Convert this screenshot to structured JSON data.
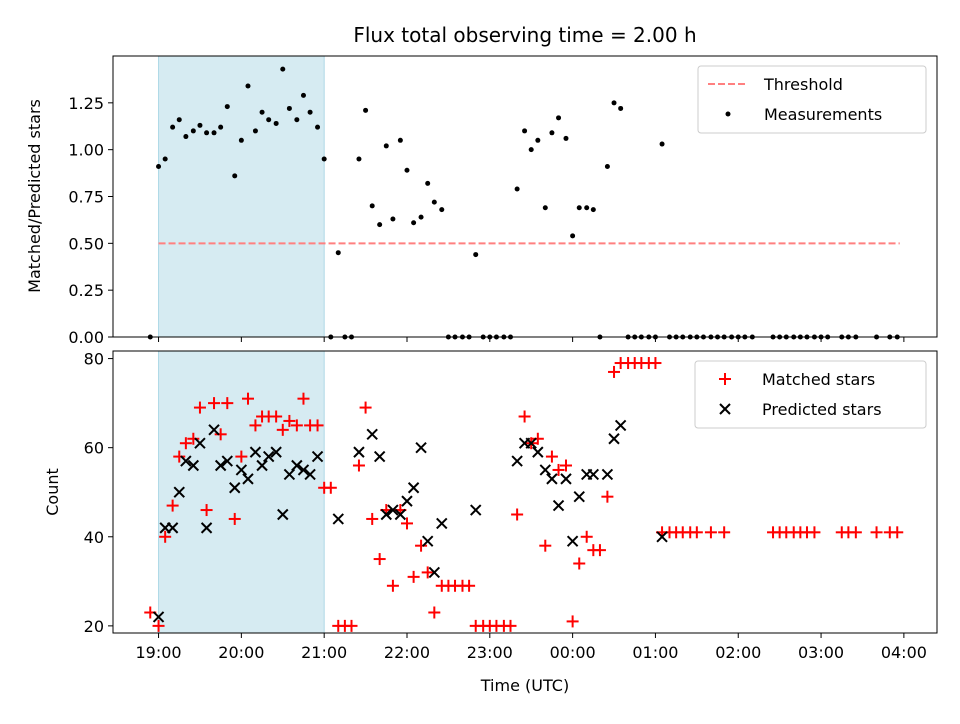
{
  "chart_data": [
    {
      "type": "scatter",
      "title": "Flux total observing time = 2.00 h",
      "xlabel": "",
      "ylabel": "Matched/Predicted stars",
      "x_units": "hours since 19:00 UTC",
      "xlim": [
        -0.55,
        9.4
      ],
      "ylim": [
        0,
        1.5
      ],
      "yticks": [
        0.0,
        0.25,
        0.5,
        0.75,
        1.0,
        1.25
      ],
      "ytick_labels": [
        "0.00",
        "0.25",
        "0.50",
        "0.75",
        "1.00",
        "1.25"
      ],
      "highlight_span": [
        0.0,
        2.0
      ],
      "highlight_color": "#add8e6",
      "threshold": {
        "label": "Threshold",
        "value": 0.5,
        "x_range": [
          0.0,
          8.95
        ],
        "color": "#ff8080"
      },
      "legend": [
        "Threshold",
        "Measurements"
      ],
      "series": [
        {
          "name": "Measurements",
          "color": "#000000",
          "x": [
            -0.1,
            0.0,
            0.08,
            0.17,
            0.25,
            0.33,
            0.42,
            0.5,
            0.58,
            0.67,
            0.75,
            0.83,
            0.92,
            1.0,
            1.08,
            1.17,
            1.25,
            1.33,
            1.42,
            1.5,
            1.58,
            1.67,
            1.75,
            1.83,
            1.92,
            2.0,
            2.08,
            2.17,
            2.25,
            2.33,
            2.42,
            2.5,
            2.58,
            2.67,
            2.75,
            2.83,
            2.92,
            3.0,
            3.08,
            3.17,
            3.25,
            3.33,
            3.42,
            3.5,
            3.58,
            3.67,
            3.75,
            3.83,
            3.92,
            4.0,
            4.08,
            4.17,
            4.25,
            4.33,
            4.42,
            4.5,
            4.58,
            4.67,
            4.75,
            4.83,
            4.92,
            5.0,
            5.08,
            5.17,
            5.25,
            5.33,
            5.42,
            5.5,
            5.58,
            5.67,
            5.75,
            5.83,
            5.92,
            6.0,
            6.08,
            6.17,
            6.25,
            6.33,
            6.42,
            6.5,
            6.58,
            6.67,
            6.75,
            6.83,
            6.92,
            7.0,
            7.08,
            7.17,
            7.42,
            7.5,
            7.58,
            7.67,
            7.75,
            7.83,
            7.92,
            8.0,
            8.08,
            8.25,
            8.33,
            8.42,
            8.67,
            8.83,
            8.92
          ],
          "y": [
            0.0,
            0.91,
            0.95,
            1.12,
            1.16,
            1.07,
            1.1,
            1.13,
            1.09,
            1.09,
            1.12,
            1.23,
            0.86,
            1.05,
            1.34,
            1.1,
            1.2,
            1.16,
            1.14,
            1.43,
            1.22,
            1.16,
            1.29,
            1.2,
            1.12,
            0.95,
            0.0,
            0.45,
            0.0,
            0.0,
            0.95,
            1.21,
            0.7,
            0.6,
            1.02,
            0.63,
            1.05,
            0.89,
            0.61,
            0.64,
            0.82,
            0.72,
            0.68,
            0.0,
            0.0,
            0.0,
            0.0,
            0.44,
            0.0,
            0.0,
            0.0,
            0.0,
            0.0,
            0.79,
            1.1,
            1.0,
            1.05,
            0.69,
            1.09,
            1.17,
            1.06,
            0.54,
            0.69,
            0.69,
            0.68,
            0.0,
            0.91,
            1.25,
            1.22,
            0.0,
            0.0,
            0.0,
            0.0,
            0.0,
            1.03,
            0.0,
            0.0,
            0.0,
            0.0,
            0.0,
            0.0,
            0.0,
            0.0,
            0.0,
            0.0,
            0.0,
            0.0,
            0.0,
            0.0,
            0.0,
            0.0,
            0.0,
            0.0,
            0.0,
            0.0,
            0.0,
            0.0,
            0.0,
            0.0,
            0.0,
            0.0,
            0.0,
            0.0
          ]
        }
      ]
    },
    {
      "type": "scatter",
      "title": "",
      "xlabel": "Time (UTC)",
      "ylabel": "Count",
      "x_units": "hours since 19:00 UTC",
      "xlim": [
        -0.55,
        9.4
      ],
      "ylim": [
        18.4,
        81.7
      ],
      "yticks": [
        20,
        40,
        60,
        80
      ],
      "ytick_labels": [
        "20",
        "40",
        "60",
        "80"
      ],
      "xticks": [
        0,
        1,
        2,
        3,
        4,
        5,
        6,
        7,
        8,
        9
      ],
      "xtick_labels": [
        "19:00",
        "20:00",
        "21:00",
        "22:00",
        "23:00",
        "00:00",
        "01:00",
        "02:00",
        "03:00",
        "04:00"
      ],
      "highlight_span": [
        0.0,
        2.0
      ],
      "highlight_color": "#add8e6",
      "legend": [
        "Matched stars",
        "Predicted stars"
      ],
      "series": [
        {
          "name": "Matched stars",
          "marker": "+",
          "color": "#ff0000",
          "x": [
            -0.1,
            0.0,
            0.08,
            0.17,
            0.25,
            0.33,
            0.42,
            0.5,
            0.58,
            0.67,
            0.75,
            0.83,
            0.92,
            1.0,
            1.08,
            1.17,
            1.25,
            1.33,
            1.42,
            1.5,
            1.58,
            1.67,
            1.75,
            1.83,
            1.92,
            2.0,
            2.08,
            2.17,
            2.25,
            2.33,
            2.42,
            2.5,
            2.58,
            2.67,
            2.75,
            2.83,
            2.92,
            3.0,
            3.08,
            3.17,
            3.25,
            3.33,
            3.42,
            3.5,
            3.58,
            3.67,
            3.75,
            3.83,
            3.92,
            4.0,
            4.08,
            4.17,
            4.25,
            4.33,
            4.42,
            4.5,
            4.58,
            4.67,
            4.75,
            4.83,
            4.92,
            5.0,
            5.08,
            5.17,
            5.25,
            5.33,
            5.42,
            5.5,
            5.58,
            5.67,
            5.75,
            5.83,
            5.92,
            6.0,
            6.08,
            6.17,
            6.25,
            6.33,
            6.42,
            6.5,
            6.67,
            6.83,
            7.42,
            7.5,
            7.58,
            7.67,
            7.75,
            7.83,
            7.92,
            8.25,
            8.33,
            8.42,
            8.67,
            8.83,
            8.92
          ],
          "y": [
            23,
            20,
            40,
            47,
            58,
            61,
            62,
            69,
            46,
            70,
            63,
            70,
            44,
            58,
            71,
            65,
            67,
            67,
            67,
            64,
            66,
            65,
            71,
            65,
            65,
            51,
            51,
            20,
            20,
            20,
            56,
            69,
            44,
            35,
            46,
            29,
            46,
            43,
            31,
            38,
            32,
            23,
            29,
            29,
            29,
            29,
            29,
            20,
            20,
            20,
            20,
            20,
            20,
            45,
            67,
            61,
            62,
            38,
            58,
            55,
            56,
            21,
            34,
            40,
            37,
            37,
            49,
            77,
            79,
            79,
            79,
            79,
            79,
            79,
            41,
            41,
            41,
            41,
            41,
            41,
            41,
            41,
            41,
            41,
            41,
            41,
            41,
            41,
            41,
            41,
            41,
            41,
            41,
            41,
            41
          ]
        },
        {
          "name": "Predicted stars",
          "marker": "x",
          "color": "#000000",
          "x": [
            0.0,
            0.08,
            0.17,
            0.25,
            0.33,
            0.42,
            0.5,
            0.58,
            0.67,
            0.75,
            0.83,
            0.92,
            1.0,
            1.08,
            1.17,
            1.25,
            1.33,
            1.42,
            1.5,
            1.58,
            1.67,
            1.75,
            1.83,
            1.92,
            2.17,
            2.42,
            2.58,
            2.67,
            2.75,
            2.83,
            2.92,
            3.0,
            3.08,
            3.17,
            3.25,
            3.33,
            3.42,
            3.83,
            4.33,
            4.42,
            4.5,
            4.58,
            4.67,
            4.75,
            4.83,
            4.92,
            5.0,
            5.08,
            5.17,
            5.25,
            5.42,
            5.5,
            5.58,
            6.08
          ],
          "y": [
            22,
            42,
            42,
            50,
            57,
            56,
            61,
            42,
            64,
            56,
            57,
            51,
            55,
            53,
            59,
            56,
            58,
            59,
            45,
            54,
            56,
            55,
            54,
            58,
            44,
            59,
            63,
            58,
            45,
            46,
            45,
            48,
            51,
            60,
            39,
            32,
            43,
            46,
            57,
            61,
            61,
            59,
            55,
            53,
            47,
            53,
            39,
            49,
            54,
            54,
            54,
            62,
            65,
            40
          ]
        }
      ]
    }
  ]
}
